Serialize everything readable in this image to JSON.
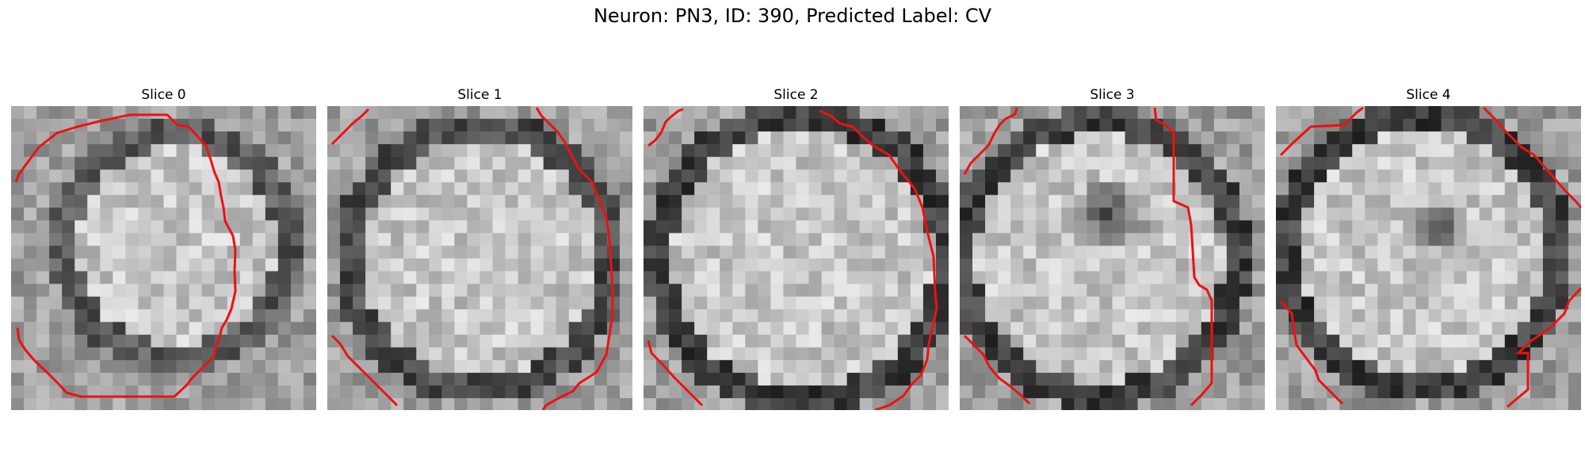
{
  "figure": {
    "title": "Neuron: PN3, ID: 390, Predicted Label: CV"
  },
  "panels": [
    {
      "title": "Slice 0"
    },
    {
      "title": "Slice 1"
    },
    {
      "title": "Slice 2"
    },
    {
      "title": "Slice 3"
    },
    {
      "title": "Slice 4"
    }
  ],
  "colors": {
    "contour": "#ee1111",
    "background": "#ffffff"
  }
}
